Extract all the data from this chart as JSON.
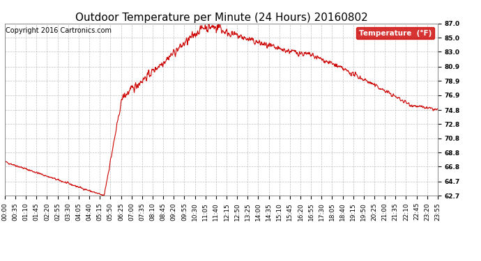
{
  "title": "Outdoor Temperature per Minute (24 Hours) 20160802",
  "copyright_text": "Copyright 2016 Cartronics.com",
  "legend_label": "Temperature  (°F)",
  "legend_bg": "#cc0000",
  "legend_text_color": "#ffffff",
  "line_color": "#cc0000",
  "background_color": "#ffffff",
  "grid_color": "#b0b0b0",
  "ylim": [
    62.7,
    87.0
  ],
  "yticks": [
    62.7,
    64.7,
    66.8,
    68.8,
    70.8,
    72.8,
    74.8,
    76.9,
    78.9,
    80.9,
    83.0,
    85.0,
    87.0
  ],
  "xtick_labels": [
    "00:00",
    "00:35",
    "01:10",
    "01:45",
    "02:20",
    "02:55",
    "03:30",
    "04:05",
    "04:40",
    "05:15",
    "05:50",
    "06:25",
    "07:00",
    "07:35",
    "08:10",
    "08:45",
    "09:20",
    "09:55",
    "10:30",
    "11:05",
    "11:40",
    "12:15",
    "12:50",
    "13:25",
    "14:00",
    "14:35",
    "15:10",
    "15:45",
    "16:20",
    "16:55",
    "17:30",
    "18:05",
    "18:40",
    "19:15",
    "19:50",
    "20:25",
    "21:00",
    "21:35",
    "22:10",
    "22:45",
    "23:20",
    "23:55"
  ],
  "title_fontsize": 11,
  "tick_fontsize": 6.5,
  "copyright_fontsize": 7
}
